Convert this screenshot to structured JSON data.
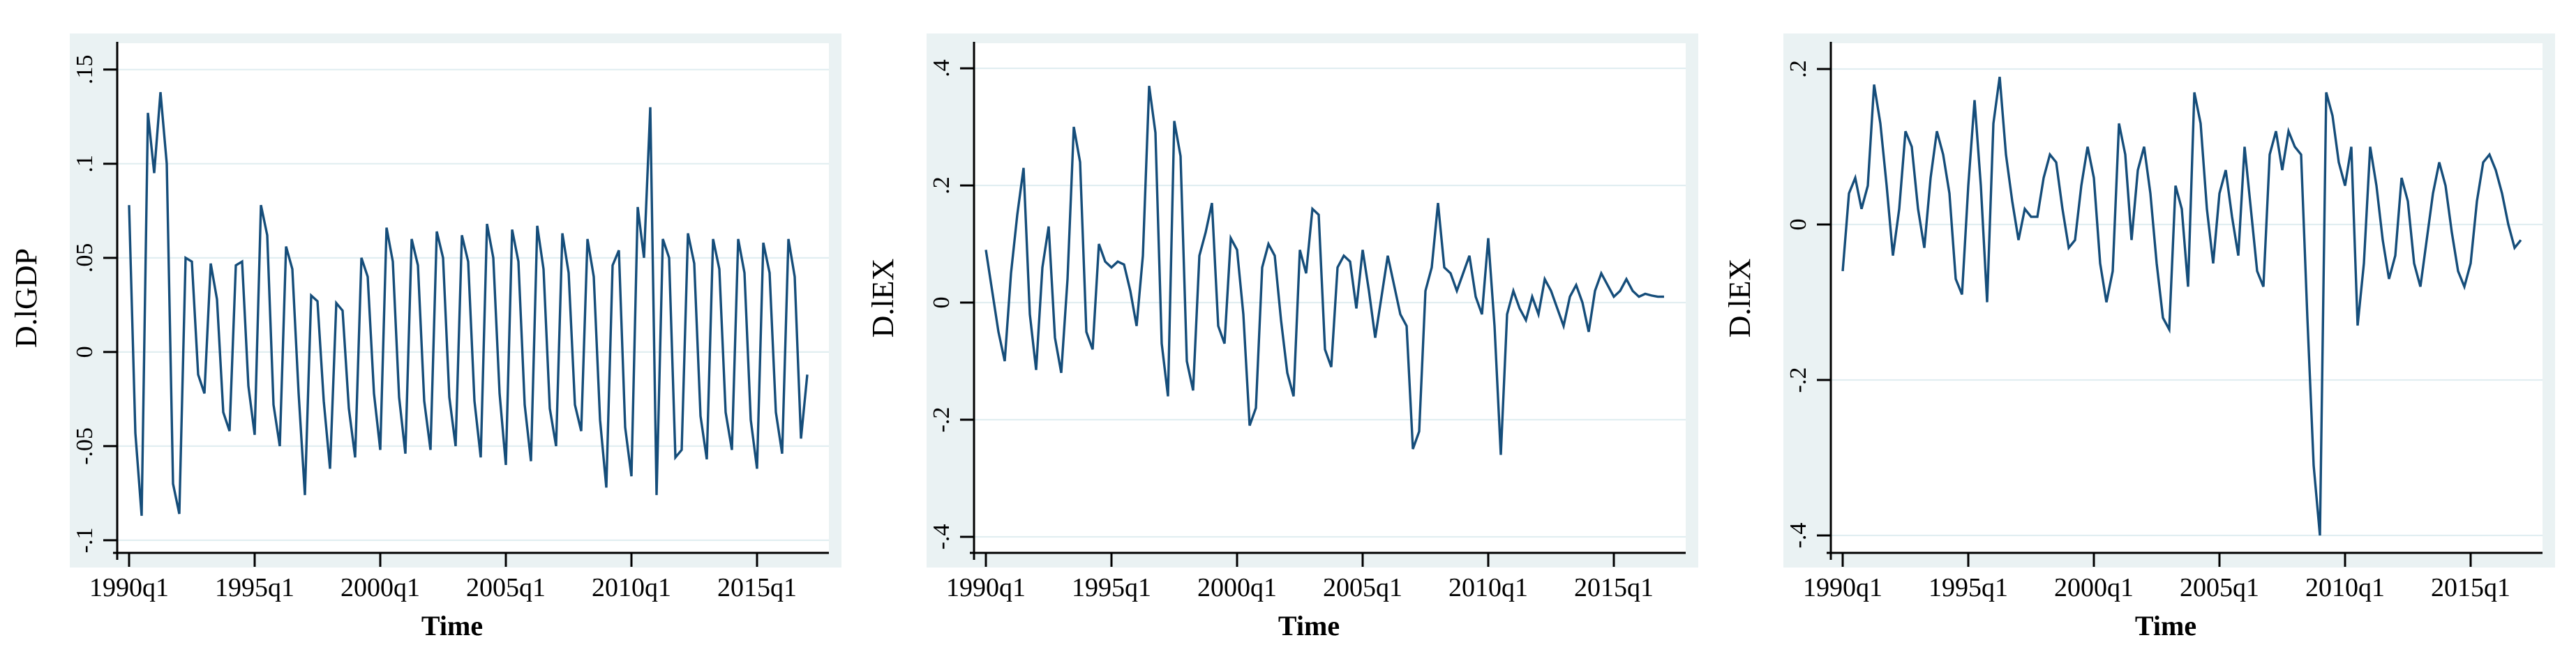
{
  "style": {
    "canvas_bg": "#ffffff",
    "panel_bg": "#eaf2f3",
    "plot_bg": "#ffffff",
    "grid_color": "#e1eef1",
    "axis_color": "#000000",
    "line_color": "#154d7a",
    "text_color": "#000000"
  },
  "chart_data": [
    {
      "type": "line",
      "ylabel": "D.lGDP",
      "xlabel": "Time",
      "x_start": "1990q1",
      "x_end": "2017q1",
      "frequency": "quarterly",
      "grid": true,
      "legend": "none",
      "ylim": [
        -0.1067,
        0.164
      ],
      "yticks": [
        {
          "v": 0.15,
          "label": ".15"
        },
        {
          "v": 0.1,
          "label": ".1"
        },
        {
          "v": 0.05,
          "label": ".05"
        },
        {
          "v": 0.0,
          "label": "0"
        },
        {
          "v": -0.05,
          "label": "-.05"
        },
        {
          "v": -0.1,
          "label": "-.1"
        }
      ],
      "xticks": [
        {
          "i": 0,
          "label": "1990q1"
        },
        {
          "i": 20,
          "label": "1995q1"
        },
        {
          "i": 40,
          "label": "2000q1"
        },
        {
          "i": 60,
          "label": "2005q1"
        },
        {
          "i": 80,
          "label": "2010q1"
        },
        {
          "i": 100,
          "label": "2015q1"
        }
      ],
      "values": [
        0.078,
        -0.043,
        -0.087,
        0.127,
        0.095,
        0.138,
        0.1,
        -0.07,
        -0.086,
        0.05,
        0.048,
        -0.012,
        -0.022,
        0.047,
        0.028,
        -0.032,
        -0.042,
        0.046,
        0.048,
        -0.018,
        -0.044,
        0.078,
        0.062,
        -0.028,
        -0.05,
        0.056,
        0.044,
        -0.022,
        -0.076,
        0.03,
        0.027,
        -0.026,
        -0.062,
        0.026,
        0.022,
        -0.03,
        -0.056,
        0.05,
        0.04,
        -0.022,
        -0.052,
        0.066,
        0.048,
        -0.024,
        -0.054,
        0.06,
        0.046,
        -0.026,
        -0.052,
        0.064,
        0.05,
        -0.024,
        -0.05,
        0.062,
        0.048,
        -0.026,
        -0.056,
        0.068,
        0.05,
        -0.022,
        -0.06,
        0.065,
        0.048,
        -0.028,
        -0.058,
        0.067,
        0.044,
        -0.03,
        -0.05,
        0.063,
        0.042,
        -0.028,
        -0.042,
        0.06,
        0.04,
        -0.036,
        -0.072,
        0.046,
        0.054,
        -0.04,
        -0.066,
        0.077,
        0.05,
        0.13,
        -0.076,
        0.06,
        0.05,
        -0.056,
        -0.052,
        0.063,
        0.047,
        -0.034,
        -0.057,
        0.06,
        0.044,
        -0.032,
        -0.052,
        0.06,
        0.042,
        -0.036,
        -0.062,
        0.058,
        0.042,
        -0.032,
        -0.054,
        0.06,
        0.04,
        -0.046,
        -0.012
      ]
    },
    {
      "type": "line",
      "ylabel": "D.lEX",
      "xlabel": "Time",
      "x_start": "1990q1",
      "x_end": "2017q1",
      "frequency": "quarterly",
      "grid": true,
      "legend": "none",
      "ylim": [
        -0.4274,
        0.4429
      ],
      "yticks": [
        {
          "v": 0.4,
          "label": ".4"
        },
        {
          "v": 0.2,
          "label": ".2"
        },
        {
          "v": 0.0,
          "label": "0"
        },
        {
          "v": -0.2,
          "label": "-.2"
        },
        {
          "v": -0.4,
          "label": "-.4"
        }
      ],
      "xticks": [
        {
          "i": 0,
          "label": "1990q1"
        },
        {
          "i": 20,
          "label": "1995q1"
        },
        {
          "i": 40,
          "label": "2000q1"
        },
        {
          "i": 60,
          "label": "2005q1"
        },
        {
          "i": 80,
          "label": "2010q1"
        },
        {
          "i": 100,
          "label": "2015q1"
        }
      ],
      "values": [
        0.09,
        0.02,
        -0.05,
        -0.1,
        0.05,
        0.15,
        0.23,
        -0.02,
        -0.115,
        0.06,
        0.13,
        -0.06,
        -0.12,
        0.04,
        0.3,
        0.24,
        -0.05,
        -0.08,
        0.1,
        0.07,
        0.06,
        0.07,
        0.065,
        0.02,
        -0.04,
        0.08,
        0.37,
        0.29,
        -0.07,
        -0.16,
        0.31,
        0.25,
        -0.1,
        -0.15,
        0.08,
        0.12,
        0.17,
        -0.04,
        -0.07,
        0.11,
        0.09,
        -0.02,
        -0.21,
        -0.18,
        0.06,
        0.1,
        0.08,
        -0.03,
        -0.12,
        -0.16,
        0.09,
        0.05,
        0.16,
        0.15,
        -0.08,
        -0.11,
        0.06,
        0.08,
        0.07,
        -0.01,
        0.09,
        0.02,
        -0.06,
        0.01,
        0.08,
        0.03,
        -0.02,
        -0.04,
        -0.25,
        -0.22,
        0.02,
        0.06,
        0.17,
        0.06,
        0.05,
        0.02,
        0.05,
        0.08,
        0.01,
        -0.02,
        0.11,
        -0.04,
        -0.26,
        -0.02,
        0.02,
        -0.01,
        -0.03,
        0.01,
        -0.02,
        0.04,
        0.02,
        -0.01,
        -0.04,
        0.01,
        0.03,
        0.0,
        -0.05,
        0.02,
        0.05,
        0.03,
        0.01,
        0.02,
        0.04,
        0.02,
        0.01,
        0.015,
        0.012,
        0.01,
        0.01
      ]
    },
    {
      "type": "line",
      "ylabel": "D.lEX",
      "xlabel": "Time",
      "x_start": "1990q1",
      "x_end": "2017q1",
      "frequency": "quarterly",
      "grid": true,
      "legend": "none",
      "ylim": [
        -0.4224,
        0.2332
      ],
      "yticks": [
        {
          "v": 0.2,
          "label": ".2"
        },
        {
          "v": 0.0,
          "label": "0"
        },
        {
          "v": -0.2,
          "label": "-.2"
        },
        {
          "v": -0.4,
          "label": "-.4"
        }
      ],
      "xticks": [
        {
          "i": 0,
          "label": "1990q1"
        },
        {
          "i": 20,
          "label": "1995q1"
        },
        {
          "i": 40,
          "label": "2000q1"
        },
        {
          "i": 60,
          "label": "2005q1"
        },
        {
          "i": 80,
          "label": "2010q1"
        },
        {
          "i": 100,
          "label": "2015q1"
        }
      ],
      "values": [
        -0.06,
        0.04,
        0.06,
        0.02,
        0.05,
        0.18,
        0.13,
        0.05,
        -0.04,
        0.02,
        0.12,
        0.1,
        0.02,
        -0.03,
        0.06,
        0.12,
        0.09,
        0.04,
        -0.07,
        -0.09,
        0.05,
        0.16,
        0.05,
        -0.1,
        0.13,
        0.19,
        0.09,
        0.03,
        -0.02,
        0.02,
        0.01,
        0.01,
        0.06,
        0.09,
        0.08,
        0.02,
        -0.03,
        -0.02,
        0.05,
        0.1,
        0.06,
        -0.05,
        -0.1,
        -0.06,
        0.13,
        0.09,
        -0.02,
        0.07,
        0.1,
        0.04,
        -0.05,
        -0.12,
        -0.135,
        0.05,
        0.02,
        -0.08,
        0.17,
        0.13,
        0.02,
        -0.05,
        0.04,
        0.07,
        0.01,
        -0.04,
        0.1,
        0.02,
        -0.06,
        -0.08,
        0.09,
        0.12,
        0.07,
        0.12,
        0.1,
        0.09,
        -0.12,
        -0.31,
        -0.4,
        0.17,
        0.14,
        0.08,
        0.05,
        0.1,
        -0.13,
        -0.05,
        0.1,
        0.05,
        -0.02,
        -0.07,
        -0.04,
        0.06,
        0.03,
        -0.05,
        -0.08,
        -0.02,
        0.04,
        0.08,
        0.05,
        -0.01,
        -0.06,
        -0.08,
        -0.05,
        0.03,
        0.08,
        0.09,
        0.07,
        0.04,
        0.0,
        -0.03,
        -0.02
      ]
    }
  ]
}
